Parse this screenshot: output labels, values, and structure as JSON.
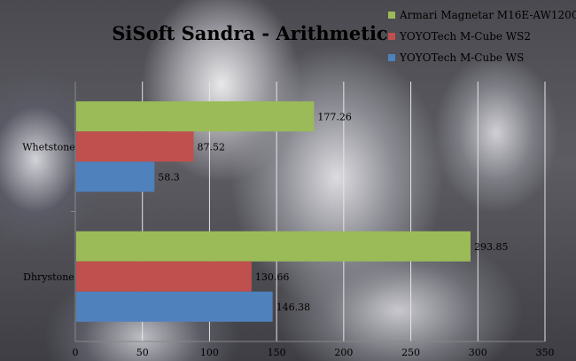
{
  "chart_data": {
    "type": "bar",
    "orientation": "horizontal",
    "title": "SiSoft Sandra - Arithmetic",
    "categories": [
      "Whetstone",
      "Dhrystone"
    ],
    "series": [
      {
        "name": "Armari Magnetar M16E-AW1200",
        "color": "#9bbb59",
        "values": [
          177.26,
          293.85
        ]
      },
      {
        "name": "YOYOTech M-Cube WS2",
        "color": "#c0504d",
        "values": [
          87.52,
          130.66
        ]
      },
      {
        "name": "YOYOTech M-Cube WS",
        "color": "#4f81bd",
        "values": [
          58.3,
          146.38
        ]
      }
    ],
    "data_labels": [
      [
        "177.26",
        "87.52",
        "58.3"
      ],
      [
        "293.85",
        "130.66",
        "146.38"
      ]
    ],
    "xlim": [
      0,
      350
    ],
    "ticks": [
      0,
      50,
      100,
      150,
      200,
      250,
      300,
      350
    ],
    "grid": true,
    "legend_position": "top-right"
  }
}
